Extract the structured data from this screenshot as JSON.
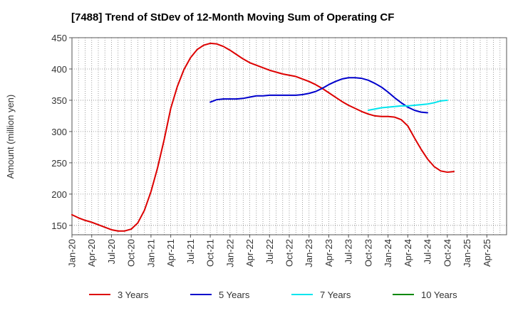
{
  "chart_data": {
    "type": "line",
    "title": "[7488]  Trend of StDev of 12-Month Moving Sum of Operating CF",
    "ylabel": "Amount (million yen)",
    "xlabel": "",
    "x_tick_labels": [
      "Jan-20",
      "Apr-20",
      "Jul-20",
      "Oct-20",
      "Jan-21",
      "Apr-21",
      "Jul-21",
      "Oct-21",
      "Jan-22",
      "Apr-22",
      "Jul-22",
      "Oct-22",
      "Jan-23",
      "Apr-23",
      "Jul-23",
      "Oct-23",
      "Jan-24",
      "Apr-24",
      "Jul-24",
      "Oct-24",
      "Jan-25",
      "Apr-25"
    ],
    "y_ticks": [
      150,
      200,
      250,
      300,
      350,
      400,
      450
    ],
    "ylim": [
      135,
      450
    ],
    "grid": true,
    "legend_position": "bottom",
    "series": [
      {
        "name": "3 Years",
        "color": "#dd0000",
        "values": [
          [
            0,
            167
          ],
          [
            1,
            162
          ],
          [
            2,
            158
          ],
          [
            3,
            155
          ],
          [
            4,
            151
          ],
          [
            5,
            147
          ],
          [
            6,
            143
          ],
          [
            7,
            141
          ],
          [
            8,
            141
          ],
          [
            9,
            144
          ],
          [
            10,
            154
          ],
          [
            11,
            174
          ],
          [
            12,
            204
          ],
          [
            13,
            242
          ],
          [
            14,
            287
          ],
          [
            15,
            337
          ],
          [
            16,
            372
          ],
          [
            17,
            399
          ],
          [
            18,
            418
          ],
          [
            19,
            431
          ],
          [
            20,
            438
          ],
          [
            21,
            441
          ],
          [
            22,
            440
          ],
          [
            23,
            436
          ],
          [
            24,
            430
          ],
          [
            25,
            423
          ],
          [
            26,
            416
          ],
          [
            27,
            410
          ],
          [
            28,
            406
          ],
          [
            29,
            402
          ],
          [
            30,
            398
          ],
          [
            31,
            395
          ],
          [
            32,
            392
          ],
          [
            33,
            390
          ],
          [
            34,
            388
          ],
          [
            35,
            384
          ],
          [
            36,
            380
          ],
          [
            37,
            375
          ],
          [
            38,
            369
          ],
          [
            39,
            362
          ],
          [
            40,
            355
          ],
          [
            41,
            348
          ],
          [
            42,
            342
          ],
          [
            43,
            337
          ],
          [
            44,
            332
          ],
          [
            45,
            328
          ],
          [
            46,
            325
          ],
          [
            47,
            324
          ],
          [
            48,
            324
          ],
          [
            49,
            323
          ],
          [
            50,
            319
          ],
          [
            51,
            309
          ],
          [
            52,
            290
          ],
          [
            53,
            272
          ],
          [
            54,
            256
          ],
          [
            55,
            244
          ],
          [
            56,
            237
          ],
          [
            57,
            235
          ],
          [
            58,
            236
          ]
        ]
      },
      {
        "name": "5 Years",
        "color": "#0000cc",
        "values": [
          [
            21,
            347
          ],
          [
            22,
            351
          ],
          [
            23,
            352
          ],
          [
            24,
            352
          ],
          [
            25,
            352
          ],
          [
            26,
            353
          ],
          [
            27,
            355
          ],
          [
            28,
            357
          ],
          [
            29,
            357
          ],
          [
            30,
            358
          ],
          [
            31,
            358
          ],
          [
            32,
            358
          ],
          [
            33,
            358
          ],
          [
            34,
            358
          ],
          [
            35,
            359
          ],
          [
            36,
            361
          ],
          [
            37,
            364
          ],
          [
            38,
            369
          ],
          [
            39,
            375
          ],
          [
            40,
            380
          ],
          [
            41,
            384
          ],
          [
            42,
            386
          ],
          [
            43,
            386
          ],
          [
            44,
            385
          ],
          [
            45,
            382
          ],
          [
            46,
            377
          ],
          [
            47,
            371
          ],
          [
            48,
            363
          ],
          [
            49,
            354
          ],
          [
            50,
            346
          ],
          [
            51,
            339
          ],
          [
            52,
            334
          ],
          [
            53,
            331
          ],
          [
            54,
            330
          ]
        ]
      },
      {
        "name": "7 Years",
        "color": "#00e5ee",
        "values": [
          [
            45,
            334
          ],
          [
            46,
            336
          ],
          [
            47,
            338
          ],
          [
            48,
            339
          ],
          [
            49,
            340
          ],
          [
            50,
            341
          ],
          [
            51,
            341
          ],
          [
            52,
            342
          ],
          [
            53,
            343
          ],
          [
            54,
            344
          ],
          [
            55,
            346
          ],
          [
            56,
            349
          ],
          [
            57,
            350
          ]
        ]
      },
      {
        "name": "10 Years",
        "color": "#008800",
        "values": []
      }
    ]
  }
}
